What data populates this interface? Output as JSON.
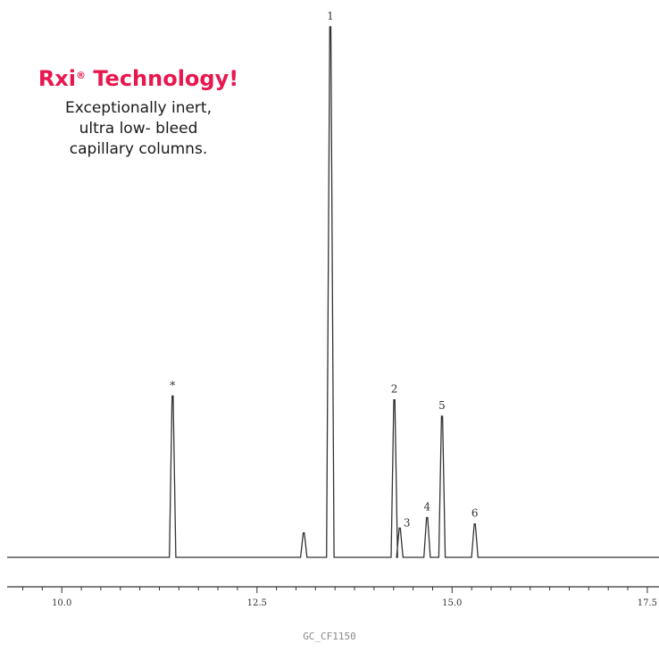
{
  "headline": {
    "brand": "Rxi",
    "reg": "®",
    "rest": " Technology!"
  },
  "subtext": [
    "Exceptionally inert,",
    "ultra low- bleed",
    "capillary columns."
  ],
  "code": "GC_CF1150",
  "colors": {
    "accent": "#e8174e",
    "trace": "#333333"
  },
  "chart_data": {
    "type": "line",
    "title": "",
    "xlabel": "",
    "ylabel": "",
    "xlim": [
      9.3,
      17.65
    ],
    "ylim": [
      0,
      100
    ],
    "xticks": [
      "10.0",
      "12.5",
      "15.0",
      "17.5"
    ],
    "xtick_values": [
      10.0,
      12.5,
      15.0,
      17.5
    ],
    "minor_tick_step": 0.25,
    "grid": false,
    "peaks": [
      {
        "label": "*",
        "x": 11.42,
        "y": 30.4
      },
      {
        "label": "",
        "x": 13.1,
        "y": 4.6
      },
      {
        "label": "1",
        "x": 13.44,
        "y": 100
      },
      {
        "label": "2",
        "x": 14.26,
        "y": 29.7
      },
      {
        "label": "3",
        "x": 14.33,
        "y": 5.5
      },
      {
        "label": "4",
        "x": 14.68,
        "y": 7.5
      },
      {
        "label": "5",
        "x": 14.87,
        "y": 26.6
      },
      {
        "label": "6",
        "x": 15.29,
        "y": 6.3
      }
    ]
  }
}
